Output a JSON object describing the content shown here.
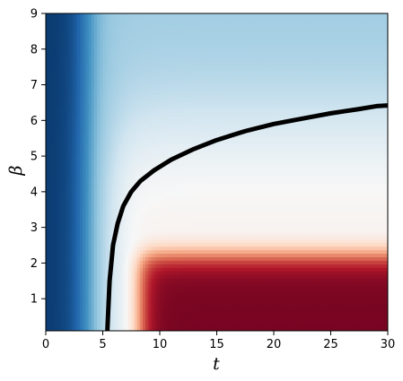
{
  "chart_data": {
    "type": "heatmap",
    "title": "",
    "xlabel": "t",
    "ylabel": "β",
    "xlim": [
      0,
      30
    ],
    "ylim": [
      0.1,
      9
    ],
    "x_ticks": [
      0,
      5,
      10,
      15,
      20,
      25,
      30
    ],
    "y_ticks": [
      1,
      2,
      3,
      4,
      5,
      6,
      7,
      8,
      9
    ],
    "colormap": {
      "name": "RdBu_r",
      "stops": [
        "#053061",
        "#2166ac",
        "#4393c3",
        "#92c5de",
        "#d1e5f0",
        "#f7f7f7",
        "#fddbc7",
        "#f4a582",
        "#d6604d",
        "#b2182b",
        "#67001f"
      ]
    },
    "field_description": "dark blue for t < ~5; light blue for large beta; white transition near beta ~4-5; red to dark red for t > ~7 and beta < ~2.5",
    "boundary_curve": {
      "color": "#000000",
      "x": [
        5.4,
        5.6,
        5.9,
        6.3,
        6.8,
        7.5,
        8.3,
        9.5,
        11,
        13,
        15,
        17.5,
        20,
        22.5,
        25,
        27.5,
        29,
        30
      ],
      "y": [
        0.1,
        1.5,
        2.5,
        3.1,
        3.6,
        4.0,
        4.3,
        4.6,
        4.9,
        5.2,
        5.45,
        5.7,
        5.9,
        6.05,
        6.2,
        6.32,
        6.4,
        6.42
      ]
    },
    "grid": false,
    "legend": "none"
  }
}
